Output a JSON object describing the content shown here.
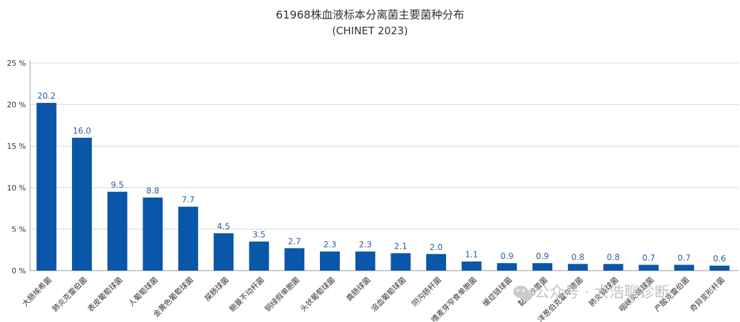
{
  "chart_data": {
    "type": "bar",
    "title": "61968株血液标本分离菌主要菌种分布",
    "subtitle": "(CHINET 2023)",
    "ylim": [
      0,
      25
    ],
    "yticks": [
      "0 %",
      "5 %",
      "10 %",
      "15 %",
      "20 %",
      "25 %"
    ],
    "ytick_values": [
      0,
      5,
      10,
      15,
      20,
      25
    ],
    "grid": true,
    "bar_color": "#0a56a8",
    "categories": [
      "大肠埃希菌",
      "肺炎克雷伯菌",
      "表皮葡萄球菌",
      "人葡萄球菌",
      "金黄色葡萄球菌",
      "屎肠球菌",
      "鲍曼不动杆菌",
      "铜绿假单胞菌",
      "头状葡萄球菌",
      "粪肠球菌",
      "溶血葡萄球菌",
      "阴沟肠杆菌",
      "嗜麦芽窄食单胞菌",
      "缓症链球菌",
      "黏质沙雷菌",
      "洋葱伯克霍尔德菌",
      "肺炎链球菌",
      "咽峡炎链球菌",
      "产酸克雷伯菌",
      "奇异变形杆菌"
    ],
    "values": [
      20.2,
      16.0,
      9.5,
      8.8,
      7.7,
      4.5,
      3.5,
      2.7,
      2.3,
      2.3,
      2.1,
      2.0,
      1.1,
      0.9,
      0.9,
      0.8,
      0.8,
      0.7,
      0.7,
      0.6
    ],
    "value_labels": [
      "20.2",
      "16.0",
      "9.5",
      "8.8",
      "7.7",
      "4.5",
      "3.5",
      "2.7",
      "2.3",
      "2.3",
      "2.1",
      "2.0",
      "1.1",
      "0.9",
      "0.9",
      "0.8",
      "0.8",
      "0.7",
      "0.7",
      "0.6"
    ]
  },
  "watermark": {
    "text": "公众号 · 大浩聊诊断",
    "icon": "wechat-icon"
  }
}
